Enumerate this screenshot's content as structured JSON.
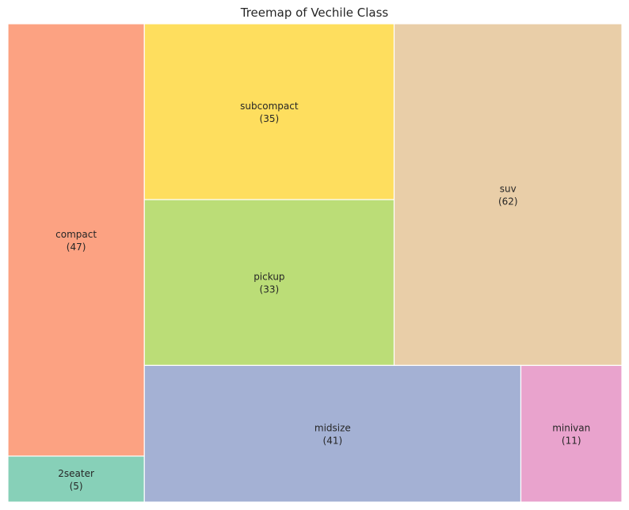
{
  "chart_data": {
    "type": "treemap",
    "title": "Treemap of Vechile Class",
    "items": [
      {
        "label": "2seater",
        "value": 5,
        "color": "#87d0b8"
      },
      {
        "label": "compact",
        "value": 47,
        "color": "#fca282"
      },
      {
        "label": "subcompact",
        "value": 35,
        "color": "#fede5e"
      },
      {
        "label": "pickup",
        "value": 33,
        "color": "#bbdd77"
      },
      {
        "label": "suv",
        "value": 62,
        "color": "#e9cea8"
      },
      {
        "label": "midsize",
        "value": 41,
        "color": "#a4b1d4"
      },
      {
        "label": "minivan",
        "value": 11,
        "color": "#e9a3cd"
      }
    ],
    "grid": false,
    "legend": "none"
  }
}
